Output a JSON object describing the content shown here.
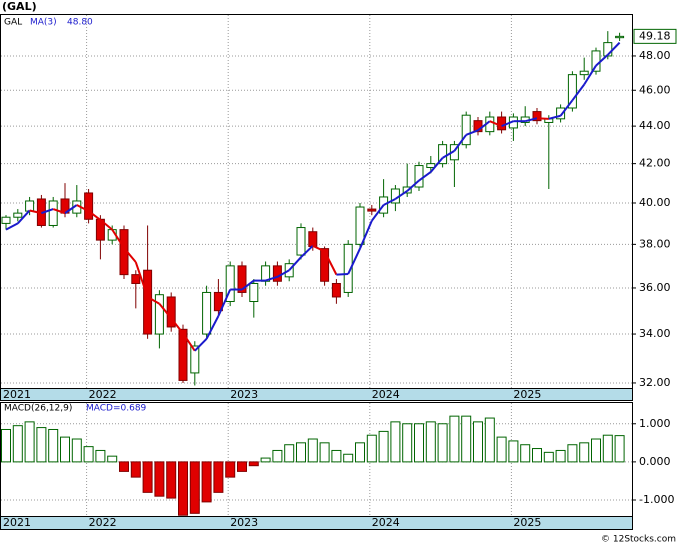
{
  "chart_data": [
    {
      "type": "candlestick",
      "title": "(GAL)",
      "ticker": "GAL",
      "log_scale": true,
      "grid": true,
      "categories": [
        "2021",
        null,
        null,
        null,
        null,
        null,
        null,
        "2022",
        null,
        null,
        null,
        null,
        null,
        null,
        null,
        null,
        null,
        null,
        null,
        "2023",
        null,
        null,
        null,
        null,
        null,
        null,
        null,
        null,
        null,
        null,
        null,
        "2024",
        null,
        null,
        null,
        null,
        null,
        null,
        null,
        null,
        null,
        null,
        null,
        "2025",
        null,
        null,
        null,
        null,
        null,
        null,
        null,
        null,
        null
      ],
      "open": [
        39.0,
        39.3,
        39.6,
        40.2,
        38.9,
        40.2,
        39.5,
        40.5,
        39.2,
        38.2,
        38.7,
        36.6,
        36.8,
        34.0,
        35.6,
        34.2,
        32.4,
        34.0,
        35.8,
        35.4,
        37.0,
        35.4,
        36.3,
        37.0,
        36.5,
        37.5,
        38.6,
        37.8,
        36.2,
        35.8,
        38.0,
        39.7,
        39.5,
        40.0,
        40.5,
        40.8,
        41.8,
        42.0,
        42.2,
        43.0,
        44.3,
        43.7,
        44.5,
        43.9,
        44.2,
        44.8,
        44.2,
        44.4,
        45.0,
        46.9,
        47.1,
        48.0,
        49.1
      ],
      "high": [
        39.4,
        39.7,
        40.3,
        40.4,
        40.3,
        41.0,
        40.9,
        40.7,
        39.4,
        38.9,
        38.9,
        36.8,
        38.9,
        35.9,
        35.8,
        34.4,
        33.7,
        36.1,
        36.4,
        37.2,
        37.2,
        36.4,
        37.2,
        37.2,
        37.3,
        39.0,
        38.8,
        37.9,
        36.4,
        38.2,
        40.0,
        39.9,
        41.2,
        40.9,
        42.0,
        42.1,
        42.4,
        43.2,
        43.2,
        44.8,
        44.5,
        44.8,
        44.8,
        44.7,
        45.1,
        45.0,
        44.6,
        45.2,
        47.1,
        47.9,
        48.5,
        49.5,
        49.4
      ],
      "low": [
        38.7,
        39.1,
        39.4,
        38.8,
        38.8,
        39.3,
        39.3,
        39.0,
        37.3,
        38.0,
        36.4,
        35.1,
        33.8,
        33.4,
        34.1,
        32.0,
        31.9,
        33.8,
        34.8,
        35.2,
        35.6,
        34.7,
        36.1,
        36.1,
        36.3,
        37.3,
        37.7,
        36.1,
        35.3,
        35.6,
        37.8,
        39.4,
        39.3,
        39.6,
        40.3,
        40.6,
        41.5,
        41.8,
        40.8,
        42.8,
        43.5,
        43.5,
        43.6,
        43.2,
        44.0,
        44.1,
        40.7,
        44.2,
        44.8,
        46.6,
        46.9,
        47.8,
        48.9
      ],
      "close": [
        39.3,
        39.5,
        40.1,
        38.9,
        40.1,
        39.5,
        40.1,
        39.2,
        38.2,
        38.7,
        36.6,
        36.2,
        34.0,
        35.7,
        34.3,
        32.1,
        33.5,
        35.8,
        35.0,
        37.0,
        35.8,
        36.2,
        37.0,
        36.3,
        37.1,
        38.8,
        37.9,
        36.3,
        35.6,
        38.0,
        39.8,
        39.6,
        40.3,
        40.7,
        40.8,
        41.9,
        42.0,
        43.0,
        43.0,
        44.6,
        43.7,
        44.5,
        43.8,
        44.5,
        44.5,
        44.3,
        44.4,
        45.0,
        46.9,
        47.1,
        48.3,
        48.8,
        49.18
      ],
      "close_label": "49.18",
      "ma": {
        "name": "MA(3)",
        "value_label": "48.80",
        "values": [
          38.7,
          39.0,
          39.63,
          39.5,
          39.7,
          39.5,
          39.9,
          39.6,
          39.17,
          38.7,
          37.83,
          37.17,
          35.6,
          35.3,
          34.67,
          34.03,
          33.3,
          33.8,
          34.77,
          35.93,
          35.93,
          36.33,
          36.33,
          36.5,
          36.8,
          37.4,
          37.93,
          37.67,
          36.6,
          36.63,
          37.8,
          39.13,
          39.9,
          40.2,
          40.6,
          41.13,
          41.57,
          42.3,
          42.67,
          43.53,
          43.77,
          44.27,
          44.0,
          44.27,
          44.27,
          44.43,
          44.4,
          44.57,
          45.43,
          46.33,
          47.43,
          48.07,
          48.8
        ]
      },
      "ylim": [
        31.8,
        50.5
      ],
      "yticks": [
        {
          "value": 32,
          "label": "32.00"
        },
        {
          "value": 34,
          "label": "34.00"
        },
        {
          "value": 36,
          "label": "36.00"
        },
        {
          "value": 38,
          "label": "38.00"
        },
        {
          "value": 40,
          "label": "40.00"
        },
        {
          "value": 42,
          "label": "42.00"
        },
        {
          "value": 44,
          "label": "44.00"
        },
        {
          "value": 46,
          "label": "46.00"
        },
        {
          "value": 48,
          "label": "48.00"
        }
      ]
    },
    {
      "type": "bar",
      "name": "MACD(26,12,9)",
      "value_label": "MACD=0.689",
      "grid": true,
      "categories": [
        "2021",
        null,
        null,
        null,
        null,
        null,
        null,
        "2022",
        null,
        null,
        null,
        null,
        null,
        null,
        null,
        null,
        null,
        null,
        null,
        "2023",
        null,
        null,
        null,
        null,
        null,
        null,
        null,
        null,
        null,
        null,
        null,
        "2024",
        null,
        null,
        null,
        null,
        null,
        null,
        null,
        null,
        null,
        null,
        null,
        "2025",
        null,
        null,
        null,
        null,
        null,
        null,
        null,
        null,
        null
      ],
      "values": [
        0.85,
        0.95,
        1.05,
        0.9,
        0.85,
        0.65,
        0.6,
        0.4,
        0.3,
        0.15,
        -0.25,
        -0.4,
        -0.8,
        -0.9,
        -0.95,
        -1.4,
        -1.35,
        -1.05,
        -0.8,
        -0.4,
        -0.25,
        -0.1,
        0.1,
        0.3,
        0.45,
        0.5,
        0.6,
        0.5,
        0.3,
        0.2,
        0.5,
        0.7,
        0.8,
        1.05,
        1.0,
        1.0,
        1.05,
        1.0,
        1.2,
        1.2,
        1.05,
        1.15,
        0.65,
        0.55,
        0.45,
        0.35,
        0.25,
        0.3,
        0.45,
        0.5,
        0.6,
        0.7,
        0.689
      ],
      "ylim": [
        -1.42,
        1.545
      ],
      "yticks": [
        {
          "value": -1,
          "label": "-1.000"
        },
        {
          "value": 0,
          "label": "0.000"
        },
        {
          "value": 1,
          "label": "1.000"
        }
      ]
    },
    {
      "type": "footer",
      "credit": "© 12Stocks.com"
    }
  ]
}
